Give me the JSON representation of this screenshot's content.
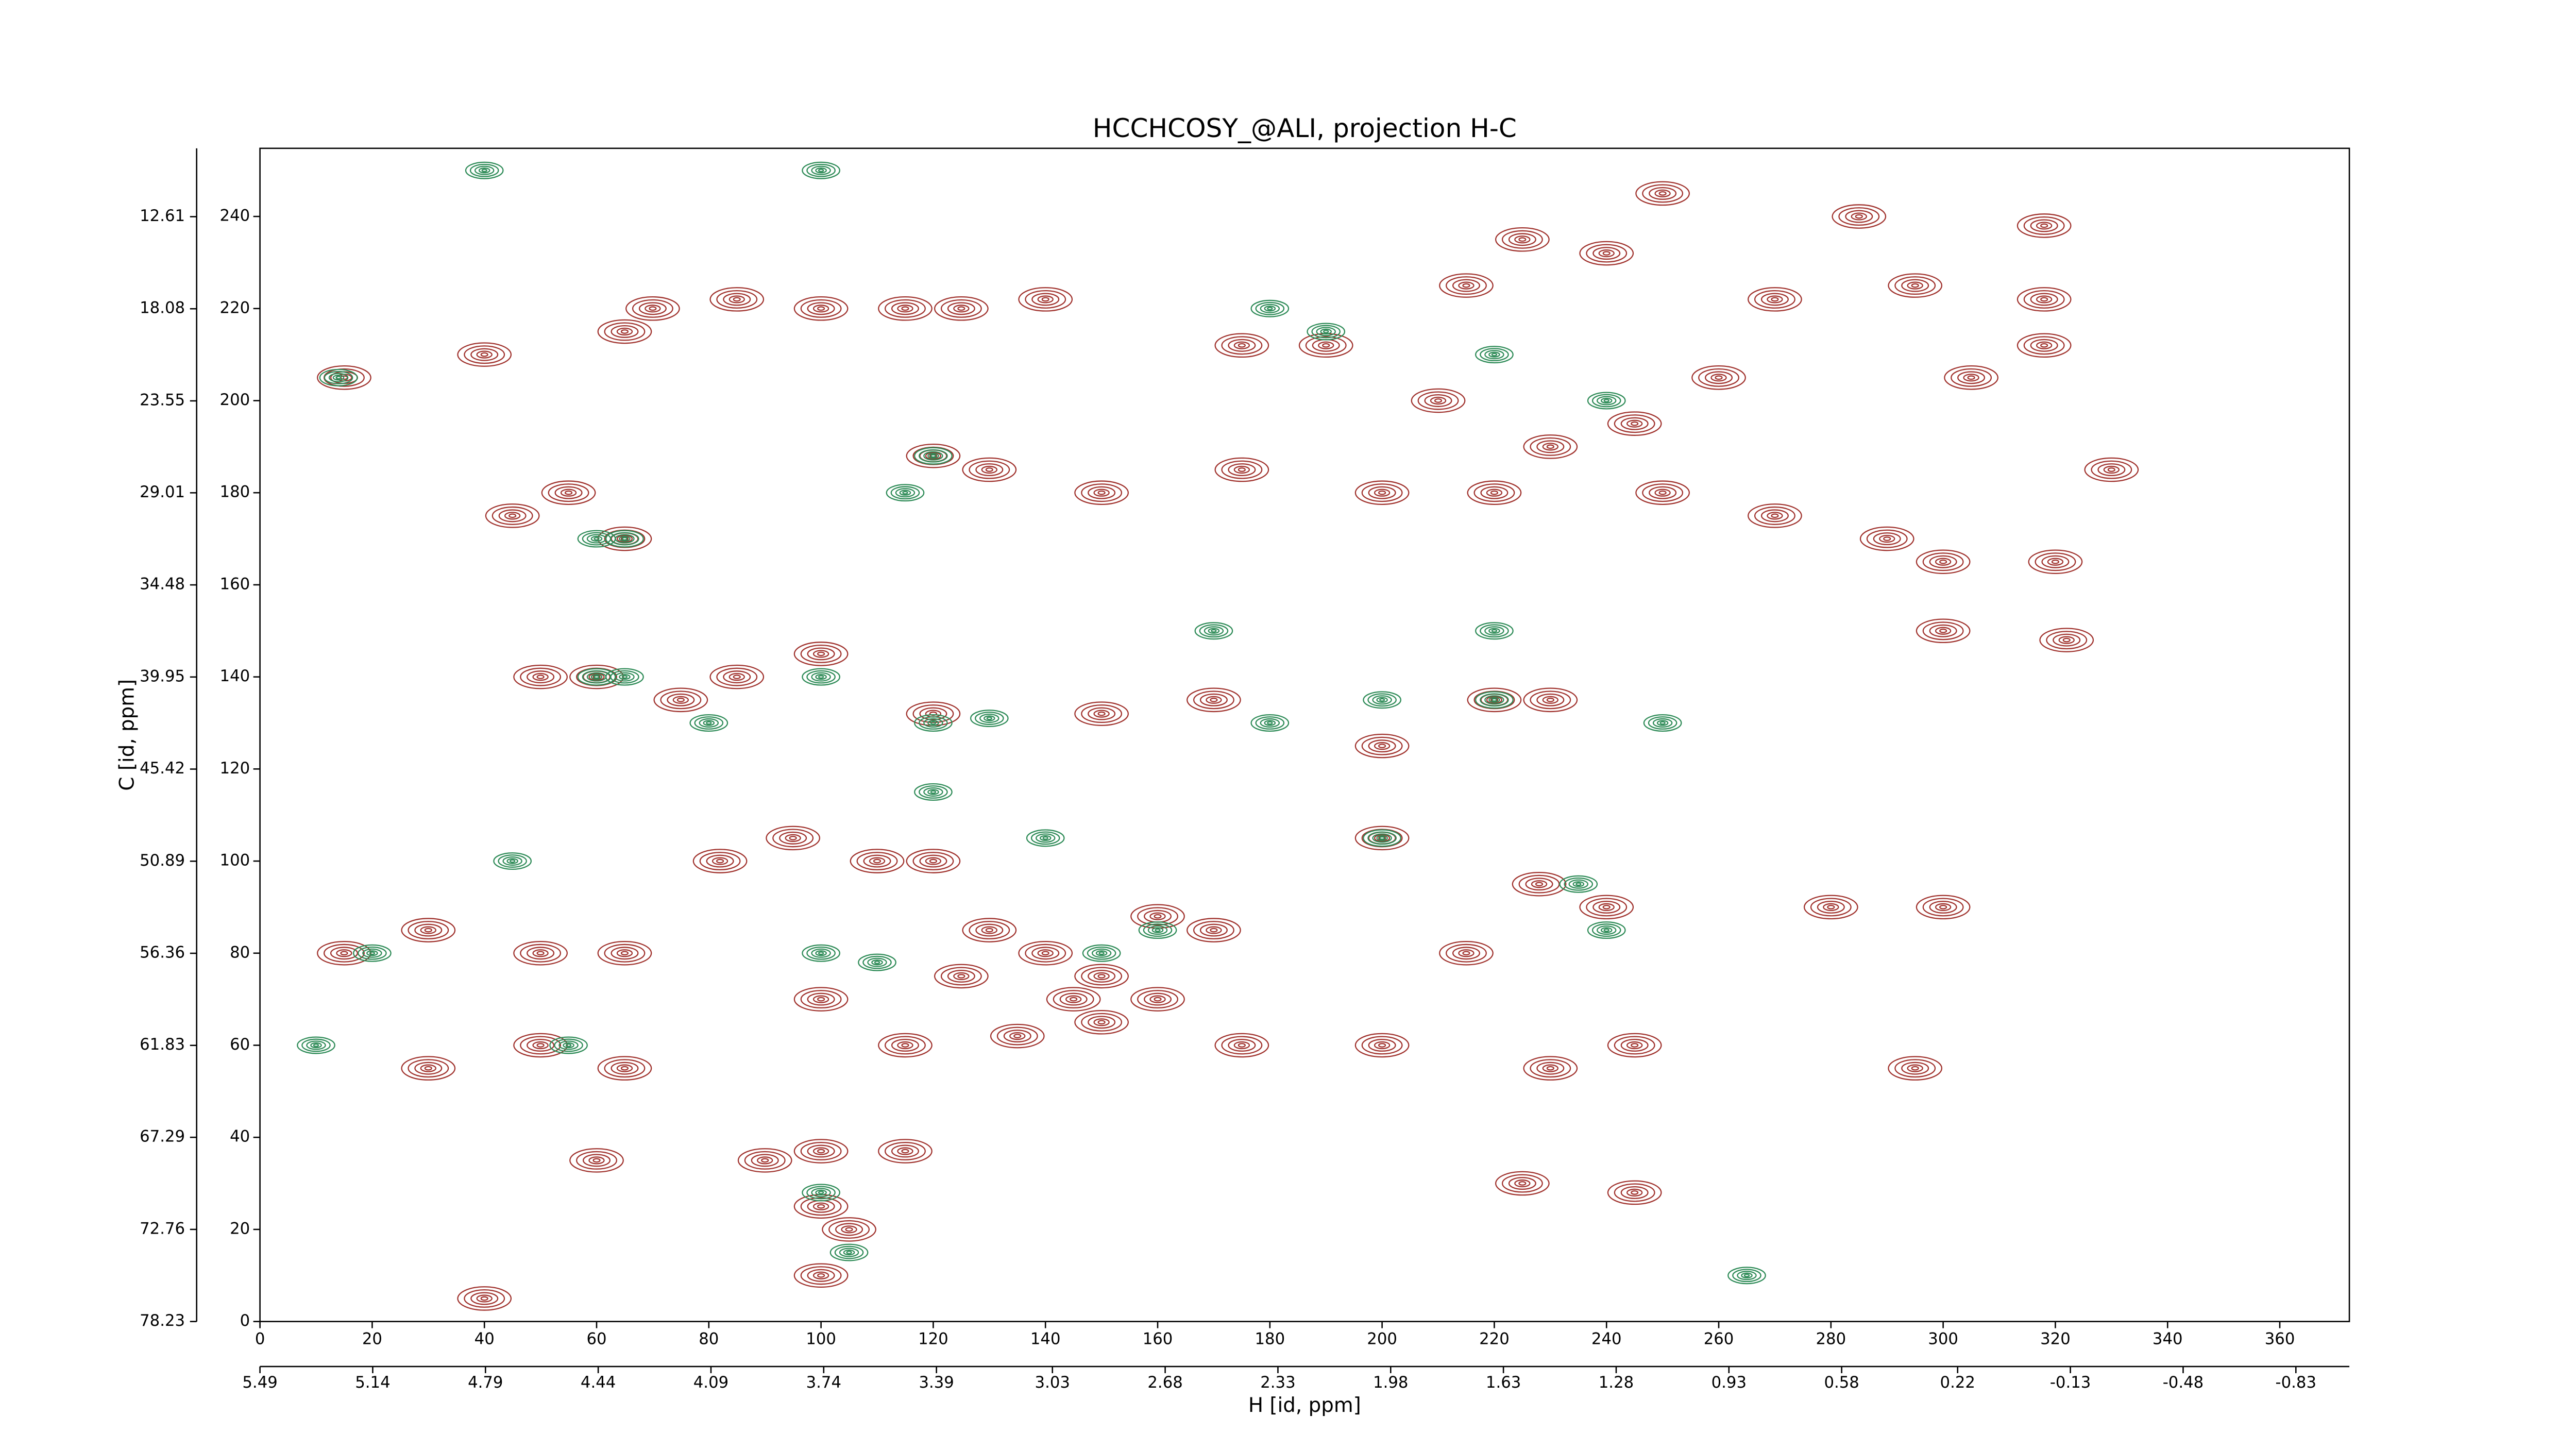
{
  "chart_data": {
    "type": "contour",
    "title": "HCCHCOSY_@ALI, projection H-C",
    "xlabel": "H [id, ppm]",
    "ylabel": "C [id, ppm]",
    "xlim": [
      0,
      372.4
    ],
    "xticks": [
      0,
      20,
      40,
      60,
      80,
      100,
      120,
      140,
      160,
      180,
      200,
      220,
      240,
      260,
      280,
      300,
      320,
      340,
      360
    ],
    "ylim": [
      0,
      254.8
    ],
    "yticks": [
      0,
      20,
      40,
      60,
      80,
      100,
      120,
      140,
      160,
      180,
      200,
      220,
      240
    ],
    "x2lim": [
      5.49,
      -0.996
    ],
    "x2ticks": [
      5.49,
      5.14,
      4.79,
      4.44,
      4.09,
      3.74,
      3.39,
      3.03,
      2.68,
      2.33,
      1.98,
      1.63,
      1.28,
      0.93,
      0.58,
      0.22,
      -0.13,
      -0.48,
      -0.83
    ],
    "y2lim": [
      78.23,
      8.55
    ],
    "y2ticks": [
      12.61,
      18.08,
      23.55,
      29.01,
      34.48,
      39.95,
      45.42,
      50.89,
      56.36,
      61.83,
      67.29,
      72.76,
      78.23
    ],
    "positive_peaks": {
      "color": "#a0322d",
      "x": [
        15,
        40,
        65,
        70,
        85,
        100,
        115,
        125,
        140,
        175,
        190,
        215,
        225,
        240,
        250,
        270,
        285,
        295,
        318,
        318,
        318,
        305,
        210,
        230,
        245,
        260,
        120,
        130,
        150,
        175,
        200,
        220,
        250,
        270,
        290,
        300,
        320,
        45,
        55,
        65,
        330,
        300,
        322,
        50,
        60,
        75,
        85,
        100,
        120,
        150,
        170,
        200,
        220,
        230,
        15,
        30,
        50,
        65,
        82,
        95,
        110,
        120,
        130,
        140,
        150,
        160,
        170,
        200,
        215,
        228,
        240,
        30,
        50,
        65,
        100,
        115,
        135,
        175,
        200,
        230,
        245,
        90,
        100,
        115,
        225,
        245,
        100,
        105,
        100,
        40,
        280,
        300,
        295,
        150,
        145,
        60,
        125,
        160
      ],
      "y": [
        205,
        210,
        215,
        220,
        222,
        220,
        220,
        220,
        222,
        212,
        212,
        225,
        235,
        232,
        245,
        222,
        240,
        225,
        238,
        222,
        212,
        205,
        200,
        190,
        195,
        205,
        188,
        185,
        180,
        185,
        180,
        180,
        180,
        175,
        170,
        165,
        165,
        175,
        180,
        170,
        185,
        150,
        148,
        140,
        140,
        135,
        140,
        145,
        132,
        132,
        135,
        125,
        135,
        135,
        80,
        85,
        80,
        80,
        100,
        105,
        100,
        100,
        85,
        80,
        75,
        88,
        85,
        105,
        80,
        95,
        90,
        55,
        60,
        55,
        70,
        60,
        62,
        60,
        60,
        55,
        60,
        35,
        37,
        37,
        30,
        28,
        25,
        20,
        10,
        5,
        90,
        90,
        55,
        65,
        70,
        35,
        75,
        70
      ]
    },
    "negative_peaks": {
      "color": "#2e8b57",
      "x": [
        14,
        40,
        100,
        180,
        190,
        220,
        240,
        120,
        60,
        65,
        115,
        100,
        120,
        130,
        180,
        200,
        250,
        220,
        220,
        60,
        65,
        120,
        140,
        200,
        235,
        240,
        150,
        160,
        45,
        100,
        110,
        20,
        10,
        55,
        100,
        105,
        265,
        80,
        170
      ],
      "y": [
        205,
        250,
        250,
        220,
        215,
        210,
        200,
        188,
        170,
        170,
        180,
        140,
        130,
        131,
        130,
        135,
        130,
        150,
        135,
        140,
        140,
        115,
        105,
        105,
        95,
        85,
        80,
        85,
        100,
        80,
        78,
        80,
        60,
        60,
        28,
        15,
        10,
        130,
        150
      ]
    }
  }
}
